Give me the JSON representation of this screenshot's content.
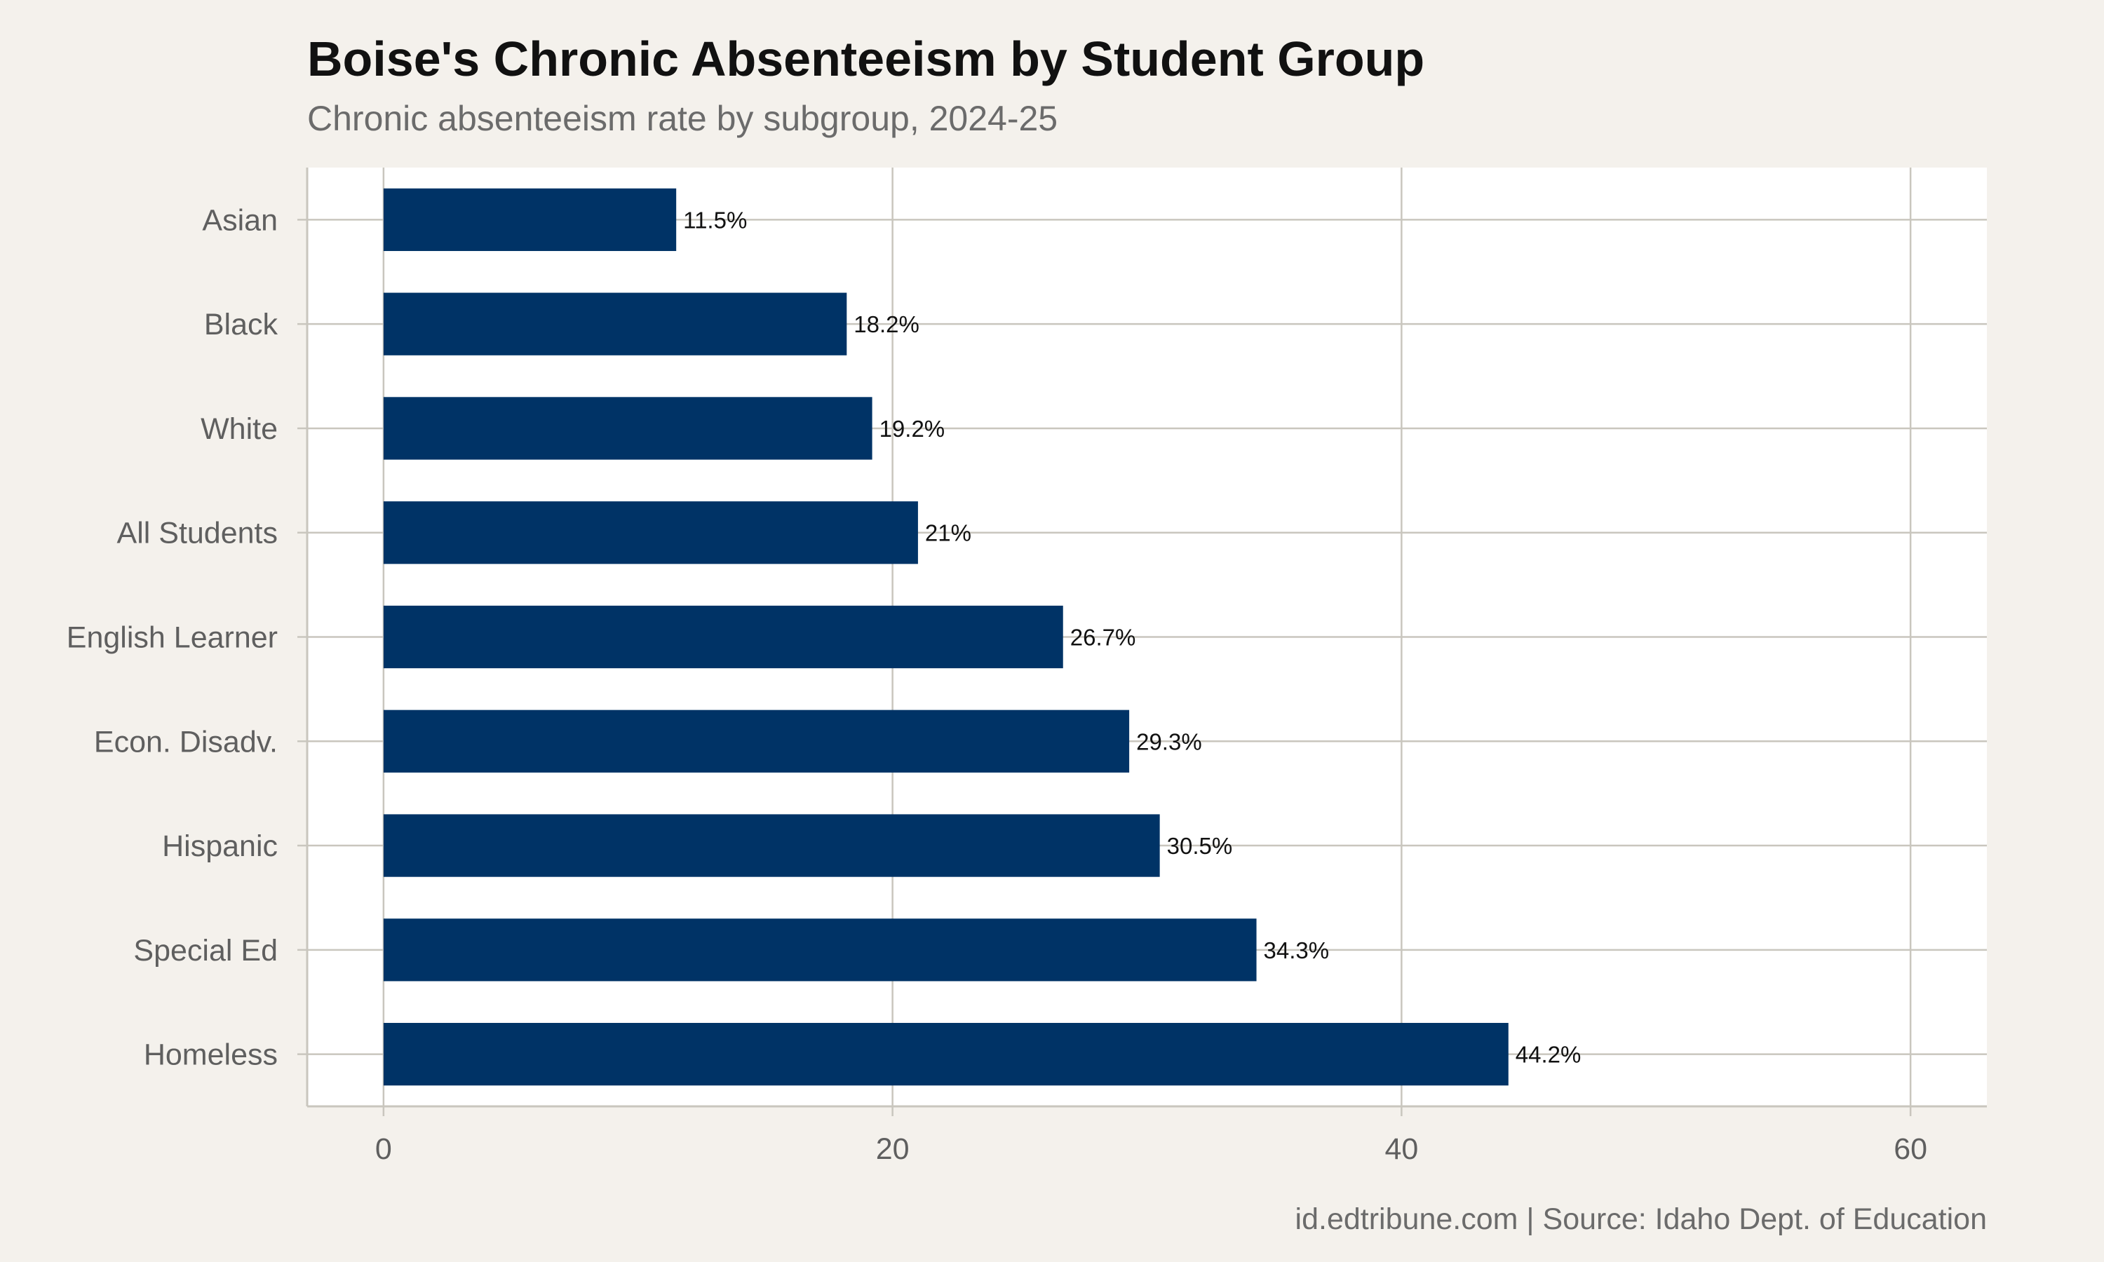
{
  "chart_data": {
    "type": "bar",
    "orientation": "horizontal",
    "title": "Boise's Chronic Absenteeism by Student Group",
    "subtitle": "Chronic absenteeism rate by subgroup, 2024-25",
    "caption": "id.edtribune.com | Source: Idaho Dept. of Education",
    "xlabel": "",
    "ylabel": "",
    "categories": [
      "Asian",
      "Black",
      "White",
      "All Students",
      "English Learner",
      "Econ. Disadv.",
      "Hispanic",
      "Special Ed",
      "Homeless"
    ],
    "values": [
      11.5,
      18.2,
      19.2,
      21,
      26.7,
      29.3,
      30.5,
      34.3,
      44.2
    ],
    "data_labels": [
      "11.5%",
      "18.2%",
      "19.2%",
      "21%",
      "26.7%",
      "29.3%",
      "30.5%",
      "34.3%",
      "44.2%"
    ],
    "xlim": [
      -3,
      63
    ],
    "xticks": [
      0,
      20,
      40,
      60
    ],
    "grid": true,
    "legend": "none",
    "colors": {
      "bar": "#003366",
      "background": "#f4f1ec",
      "panel": "#ffffff",
      "grid": "#c9c6be"
    }
  }
}
